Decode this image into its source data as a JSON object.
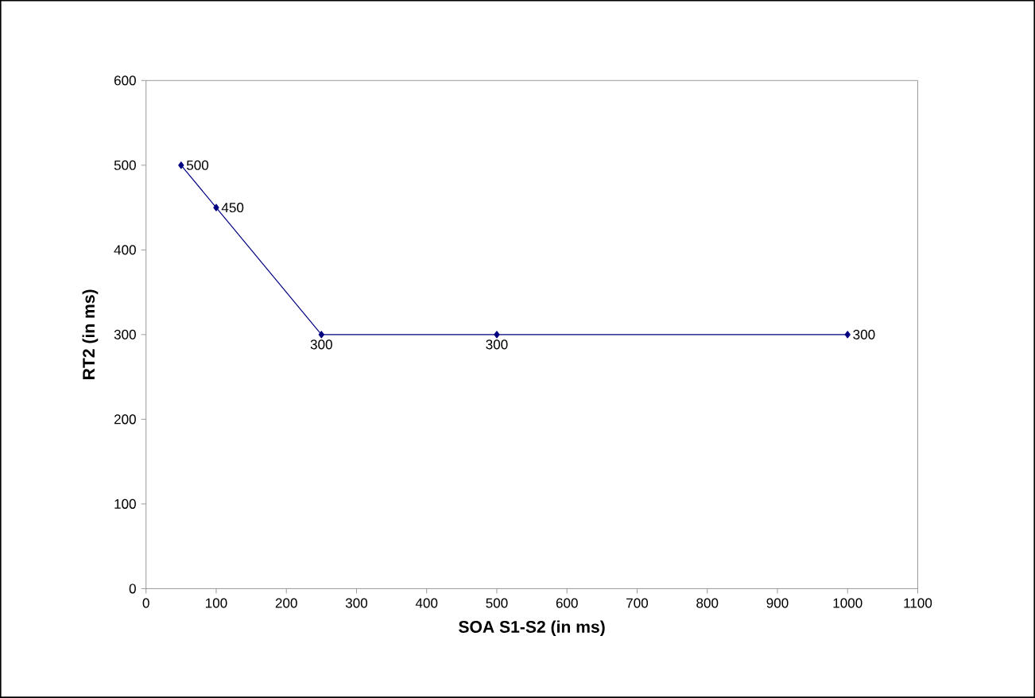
{
  "chart_data": {
    "type": "line",
    "xlabel": "SOA S1-S2 (in ms)",
    "ylabel": "RT2 (in ms)",
    "x": [
      50,
      100,
      250,
      500,
      1000
    ],
    "values": [
      500,
      450,
      300,
      300,
      300
    ],
    "color": "#000080",
    "marker": "diamond",
    "data_labels": true,
    "xlim": [
      0,
      1100
    ],
    "xticks": [
      0,
      100,
      200,
      300,
      400,
      500,
      600,
      700,
      800,
      900,
      1000,
      1100
    ],
    "ylim": [
      0,
      600
    ],
    "yticks": [
      0,
      100,
      200,
      300,
      400,
      500,
      600
    ]
  }
}
